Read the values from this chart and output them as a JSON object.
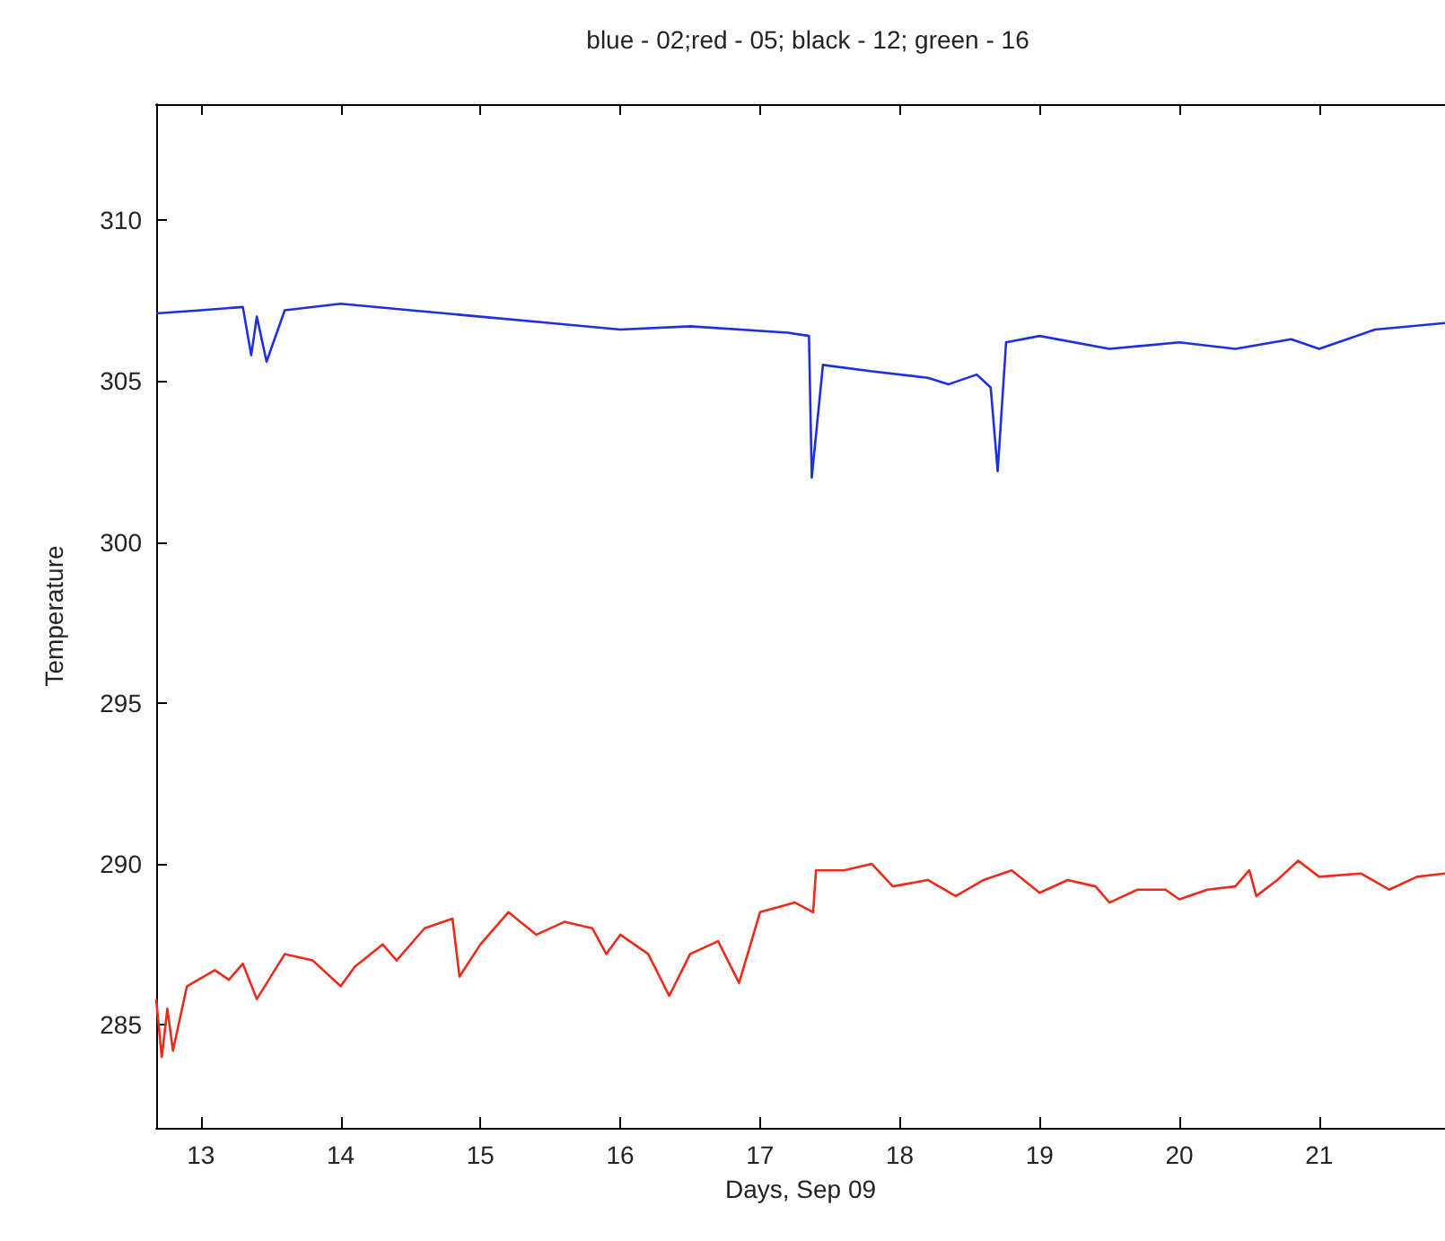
{
  "chart_data": {
    "type": "line",
    "title": "blue - 02;red - 05; black - 12; green - 16",
    "xlabel": "Days, Sep 09",
    "ylabel": "Temperature",
    "xlim": [
      12.68,
      21.9
    ],
    "xticks": [
      13,
      14,
      15,
      16,
      17,
      18,
      19,
      20,
      21
    ],
    "ylim": [
      281.8,
      313.6
    ],
    "yticks": [
      285,
      290,
      295,
      300,
      305,
      310
    ],
    "marker": "none",
    "line_style": "solid",
    "series": [
      {
        "color": "#1f2fe0",
        "x": [
          12.68,
          13.0,
          13.3,
          13.36,
          13.4,
          13.47,
          13.6,
          14.0,
          14.5,
          15.0,
          15.5,
          16.0,
          16.5,
          17.2,
          17.35,
          17.37,
          17.45,
          17.8,
          18.2,
          18.35,
          18.55,
          18.65,
          18.7,
          18.76,
          19.0,
          19.5,
          20.0,
          20.4,
          20.8,
          21.0,
          21.4,
          21.9
        ],
        "values": [
          307.1,
          307.2,
          307.3,
          305.8,
          307.0,
          305.6,
          307.2,
          307.4,
          307.2,
          307.0,
          306.8,
          306.6,
          306.7,
          306.5,
          306.4,
          302.0,
          305.5,
          305.3,
          305.1,
          304.9,
          305.2,
          304.8,
          302.2,
          306.2,
          306.4,
          306.0,
          306.2,
          306.0,
          306.3,
          306.0,
          306.6,
          306.8
        ]
      },
      {
        "color": "#ee2a1a",
        "x": [
          12.68,
          12.72,
          12.76,
          12.8,
          12.9,
          13.1,
          13.2,
          13.3,
          13.4,
          13.6,
          13.8,
          14.0,
          14.1,
          14.3,
          14.4,
          14.6,
          14.8,
          14.85,
          15.0,
          15.2,
          15.4,
          15.6,
          15.8,
          15.9,
          16.0,
          16.2,
          16.35,
          16.5,
          16.7,
          16.85,
          17.0,
          17.25,
          17.38,
          17.4,
          17.6,
          17.8,
          17.95,
          18.2,
          18.4,
          18.6,
          18.8,
          19.0,
          19.2,
          19.4,
          19.5,
          19.7,
          19.9,
          20.0,
          20.2,
          20.4,
          20.5,
          20.55,
          20.7,
          20.85,
          21.0,
          21.3,
          21.5,
          21.7,
          21.9
        ],
        "values": [
          285.8,
          284.0,
          285.5,
          284.2,
          286.2,
          286.7,
          286.4,
          286.9,
          285.8,
          287.2,
          287.0,
          286.2,
          286.8,
          287.5,
          287.0,
          288.0,
          288.3,
          286.5,
          287.5,
          288.5,
          287.8,
          288.2,
          288.0,
          287.2,
          287.8,
          287.2,
          285.9,
          287.2,
          287.6,
          286.3,
          288.5,
          288.8,
          288.5,
          289.8,
          289.8,
          290.0,
          289.3,
          289.5,
          289.0,
          289.5,
          289.8,
          289.1,
          289.5,
          289.3,
          288.8,
          289.2,
          289.2,
          288.9,
          289.2,
          289.3,
          289.8,
          289.0,
          289.5,
          290.1,
          289.6,
          289.7,
          289.2,
          289.6,
          289.7
        ]
      }
    ]
  }
}
